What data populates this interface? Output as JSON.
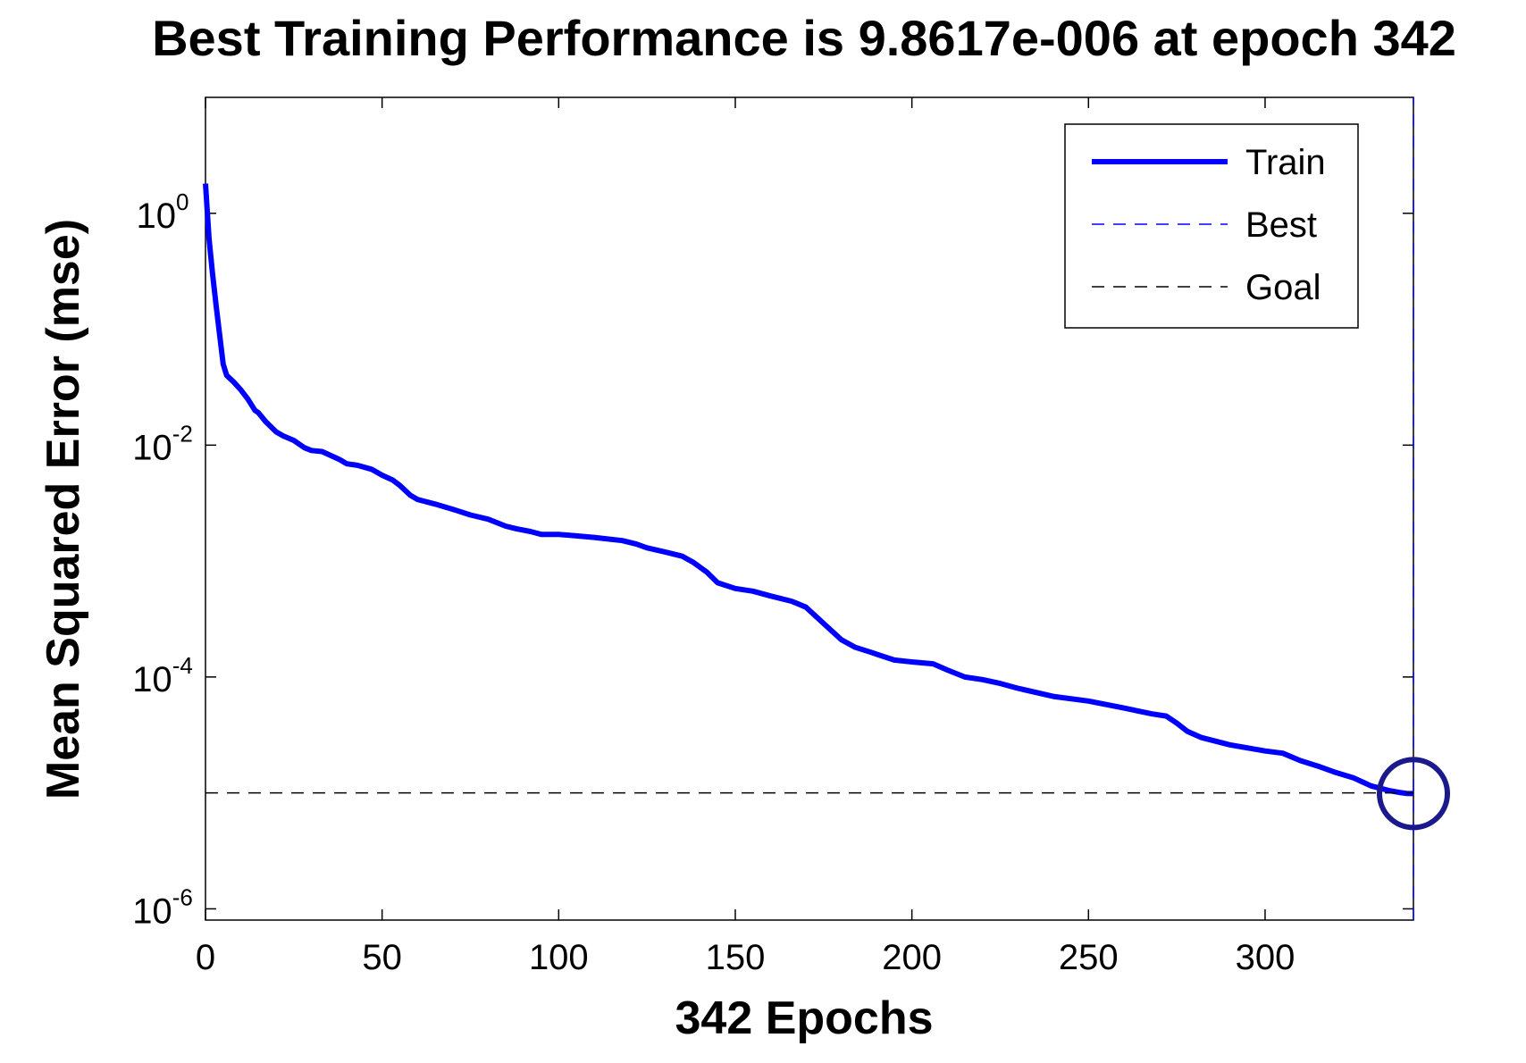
{
  "chart_data": {
    "type": "line",
    "title": "Best Training Performance is 9.8617e-006 at epoch 342",
    "xlabel": "342 Epochs",
    "ylabel": "Mean Squared Error  (mse)",
    "xlim": [
      0,
      342
    ],
    "ylim": [
      8e-07,
      10
    ],
    "yscale": "log",
    "xticks": [
      0,
      50,
      100,
      150,
      200,
      250,
      300
    ],
    "xtick_labels": [
      "0",
      "50",
      "100",
      "150",
      "200",
      "250",
      "300"
    ],
    "yticks": [
      1,
      0.01,
      0.0001,
      1e-06
    ],
    "ytick_labels": [
      {
        "base": "10",
        "exp": "0"
      },
      {
        "base": "10",
        "exp": "-2"
      },
      {
        "base": "10",
        "exp": "-4"
      },
      {
        "base": "10",
        "exp": "-6"
      }
    ],
    "series": [
      {
        "name": "Train",
        "style": "solid",
        "color": "#0000ff",
        "x": [
          0,
          1,
          2,
          3,
          4,
          5,
          6,
          8,
          10,
          12,
          14,
          15,
          17,
          20,
          22,
          25,
          28,
          30,
          33,
          36,
          38,
          40,
          43,
          47,
          50,
          53,
          55,
          58,
          60,
          65,
          70,
          75,
          80,
          85,
          88,
          92,
          95,
          100,
          110,
          118,
          122,
          125,
          130,
          135,
          138,
          142,
          145,
          150,
          155,
          160,
          166,
          170,
          175,
          180,
          184,
          188,
          192,
          195,
          200,
          206,
          210,
          215,
          220,
          225,
          230,
          240,
          250,
          260,
          268,
          272,
          275,
          278,
          282,
          290,
          300,
          305,
          310,
          315,
          320,
          325,
          330,
          335,
          338,
          340,
          342
        ],
        "y": [
          1.8,
          0.6,
          0.3,
          0.16,
          0.09,
          0.05,
          0.04,
          0.035,
          0.03,
          0.025,
          0.02,
          0.019,
          0.016,
          0.013,
          0.012,
          0.011,
          0.0095,
          0.009,
          0.0088,
          0.008,
          0.0075,
          0.0069,
          0.0067,
          0.0062,
          0.0055,
          0.005,
          0.0045,
          0.0037,
          0.0034,
          0.0031,
          0.0028,
          0.0025,
          0.0023,
          0.002,
          0.0019,
          0.0018,
          0.0017,
          0.0017,
          0.0016,
          0.0015,
          0.0014,
          0.0013,
          0.0012,
          0.0011,
          0.00098,
          0.0008,
          0.00065,
          0.00058,
          0.00055,
          0.0005,
          0.00045,
          0.0004,
          0.00029,
          0.00021,
          0.00018,
          0.000165,
          0.00015,
          0.00014,
          0.000135,
          0.00013,
          0.000115,
          0.0001,
          9.5e-05,
          8.8e-05,
          8e-05,
          6.8e-05,
          6.2e-05,
          5.4e-05,
          4.8e-05,
          4.6e-05,
          4e-05,
          3.4e-05,
          3e-05,
          2.6e-05,
          2.3e-05,
          2.2e-05,
          1.9e-05,
          1.7e-05,
          1.5e-05,
          1.35e-05,
          1.15e-05,
          1.05e-05,
          1.01e-05,
          9.9e-06,
          9.8617e-06
        ]
      },
      {
        "name": "Best",
        "style": "dashed",
        "color": "#0000ff",
        "x": [
          342,
          342
        ],
        "y": [
          8e-07,
          10
        ]
      },
      {
        "name": "Goal",
        "style": "dashed",
        "color": "#000000",
        "x": [
          0,
          342
        ],
        "y": [
          1e-05,
          1e-05
        ]
      }
    ],
    "best_point": {
      "epoch": 342,
      "value": 9.8617e-06
    },
    "legend": {
      "position": "top-right",
      "entries": [
        {
          "label": "Train",
          "style": "solid",
          "color": "#0000ff"
        },
        {
          "label": "Best",
          "style": "dashed",
          "color": "#0000ff"
        },
        {
          "label": "Goal",
          "style": "dashed",
          "color": "#000000"
        }
      ]
    },
    "grid": false
  },
  "colors": {
    "train": "#0000ff",
    "best_marker": "#1a1a8c",
    "goal": "#000000",
    "axes": "#000000"
  }
}
